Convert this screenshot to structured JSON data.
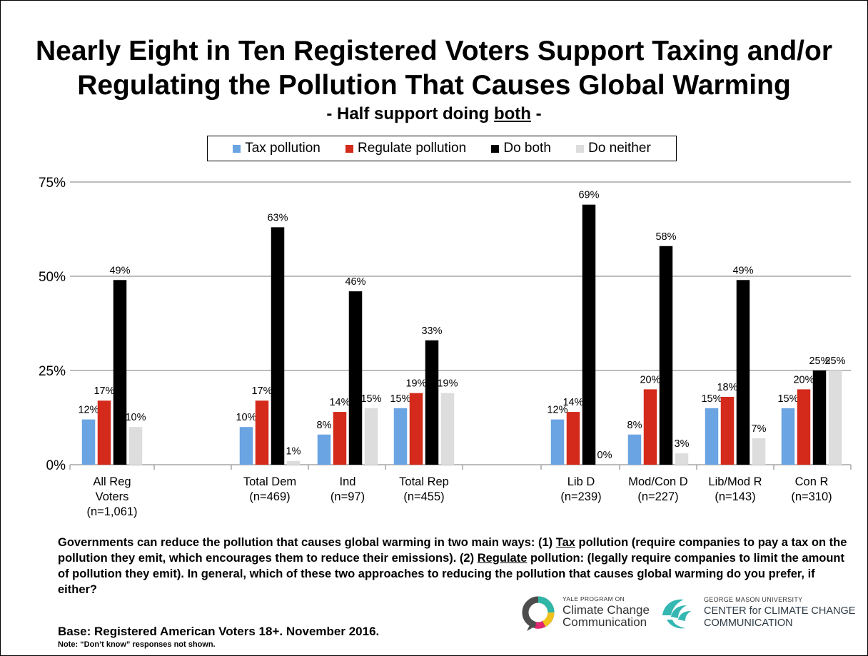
{
  "title_line1": "Nearly Eight in Ten Registered Voters Support Taxing and/or",
  "title_line2": "Regulating the Pollution That Causes Global Warming",
  "subtitle_pre": "- Half support doing ",
  "subtitle_underlined": "both",
  "subtitle_post": " -",
  "colors": {
    "tax": "#6aa4e3",
    "regulate": "#d42a1b",
    "both": "#000000",
    "neither": "#dddddd",
    "gridline": "#a6a6a6"
  },
  "chart_data": {
    "type": "bar",
    "ylim": [
      0,
      75
    ],
    "yticks": [
      "0%",
      "25%",
      "50%",
      "75%"
    ],
    "ytick_values": [
      0,
      25,
      50,
      75
    ],
    "legend_position": "top",
    "grid": true,
    "categories": [
      [
        "All Reg",
        "Voters",
        "(n=1,061)"
      ],
      [
        "Total Dem",
        "(n=469)"
      ],
      [
        "Ind",
        "(n=97)"
      ],
      [
        "Total Rep",
        "(n=455)"
      ],
      [
        "Lib D",
        "(n=239)"
      ],
      [
        "Mod/Con D",
        "(n=227)"
      ],
      [
        "Lib/Mod R",
        "(n=143)"
      ],
      [
        "Con R",
        "(n=310)"
      ]
    ],
    "series": [
      {
        "name": "Tax pollution",
        "values": [
          12,
          10,
          8,
          15,
          12,
          8,
          15,
          15
        ]
      },
      {
        "name": "Regulate pollution",
        "values": [
          17,
          17,
          14,
          19,
          14,
          20,
          18,
          20
        ]
      },
      {
        "name": "Do both",
        "values": [
          49,
          63,
          46,
          33,
          69,
          58,
          49,
          25
        ]
      },
      {
        "name": "Do neither",
        "values": [
          10,
          1,
          15,
          19,
          0,
          3,
          7,
          25
        ]
      }
    ]
  },
  "question": {
    "p1": "Governments can reduce the pollution that causes global warming in two main ways: (1) ",
    "tax_word": "Tax",
    "p2": " pollution (require companies to pay a tax on the pollution they emit, which encourages them to reduce their emissions). (2) ",
    "regulate_word": "Regulate",
    "p3": " pollution: (legally require companies to limit the amount of pollution they emit). In general, which of these two approaches to reducing the pollution that causes global warming do you prefer, if either?"
  },
  "base_text": "Base: Registered American Voters 18+. November 2016.",
  "note_text": "Note: “Don’t know” responses not shown.",
  "logo_yale": {
    "small": "YALE PROGRAM ON",
    "line1": "Climate Change",
    "line2": "Communication"
  },
  "logo_gmu": {
    "small": "GEORGE MASON UNIVERSITY",
    "line1": "CENTER for CLIMATE CHANGE",
    "line2": "COMMUNICATION"
  }
}
